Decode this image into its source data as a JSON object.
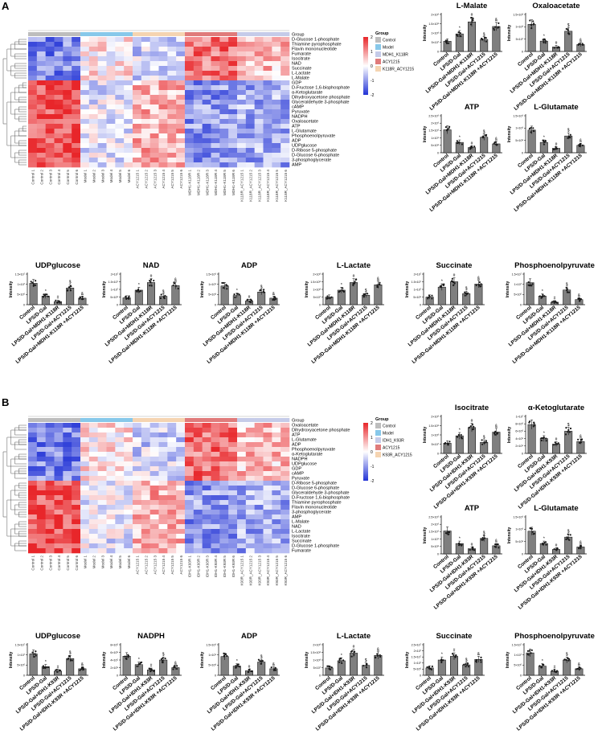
{
  "panels": {
    "A": {
      "label": "A",
      "heatmap": {
        "rows": [
          "D-Glucose 1-phosphate",
          "Thiamine pyrophosphate",
          "Flavin mononucleotide",
          "Fumarate",
          "Isocitrate",
          "NAD",
          "Succinate",
          "L-Lactate",
          "L-Malate",
          "GDP",
          "D-Fructose 1,6-bisphosphate",
          "α-Ketoglutarate",
          "Dihydroxyacetone phosphate",
          "Glyceraldehyde 3-phosphate",
          "cAMP",
          "Pyruvate",
          "NADPH",
          "Oxaloacetate",
          "ATP",
          "L-Glutamate",
          "Phosphoenolpyruvate",
          "ADP",
          "UDPglucose",
          "D-Ribose 5-phosphate",
          "D-Glucose 6-phosphate",
          "3-phosphoglycerate",
          "AMP"
        ],
        "columns": [
          "Control 1",
          "Control 2",
          "Control 3",
          "Control 4",
          "Control 5",
          "Control 6",
          "Model 1",
          "Model 2",
          "Model 3",
          "Model 4",
          "Model 5",
          "Model 6",
          "ACY1215 1",
          "ACY1215 2",
          "ACY1215 3",
          "ACY1215 4",
          "ACY1215 5",
          "ACY1215 6",
          "MDH1-K118R 1",
          "MDH1-K118R 2",
          "MDH1-K118R 3",
          "MDH1-K118R 4",
          "MDH1-K118R 5",
          "MDH1-K118R 6",
          "K118R_ACY1215 1",
          "K118R_ACY1215 2",
          "K118R_ACY1215 3",
          "K118R_ACY1215 4",
          "K118R_ACY1215 5",
          "K118R_ACY1215 6"
        ],
        "group_counts": [
          6,
          6,
          6,
          6,
          6
        ],
        "group_colors": [
          "#bdbdbd",
          "#87c8ea",
          "#f5d4b1",
          "#e07b7b",
          "#c5cbe9"
        ],
        "top_rows": 9,
        "legend": {
          "title": "Group",
          "items": [
            {
              "label": "Control",
              "color": "#bdbdbd"
            },
            {
              "label": "Model",
              "color": "#87c8ea"
            },
            {
              "label": "MDH1_K118R",
              "color": "#c5cbe9"
            },
            {
              "label": "ACY1215",
              "color": "#e07b7b"
            },
            {
              "label": "K118R_ACY1215",
              "color": "#f5d4b1"
            }
          ]
        },
        "scale_ticks": [
          "2",
          "1",
          "0",
          "-1",
          "-2"
        ]
      },
      "charts": [
        {
          "title": "L-Malate",
          "ymax": 2.0,
          "ticks": [
            "0",
            "5×10⁷",
            "1×10⁸",
            "1.5×10⁸",
            "2×10⁸"
          ],
          "categories": [
            "Control",
            "LPS/D-Gal",
            "LPS/D-Gal+MDH1-K118R",
            "LPS/D-Gal+ACY1215",
            "LPS/D-Gal+MDH1-K118R +ACY1215"
          ],
          "values": [
            0.55,
            0.95,
            1.6,
            0.65,
            1.35
          ],
          "sig": [
            "",
            "*",
            "#",
            "$",
            "&"
          ]
        },
        {
          "title": "Oxaloacetate",
          "ymax": 1.5,
          "ticks": [
            "0",
            "5×10⁷",
            "1×10⁸",
            "1.5×10⁸"
          ],
          "categories": [
            "Control",
            "LPS/D-Gal",
            "LPS/D-Gal+MDH1-K118R",
            "LPS/D-Gal+ACY1215",
            "LPS/D-Gal+MDH1-K118R +ACY1215"
          ],
          "values": [
            1.1,
            0.42,
            0.18,
            0.82,
            0.28
          ],
          "sig": [
            "",
            "*",
            "#",
            "$",
            "&"
          ]
        },
        {
          "title": "ATP",
          "ymax": 2.5,
          "ticks": [
            "0",
            "5×10⁸",
            "1×10⁹",
            "1.5×10⁹",
            "2×10⁹",
            "2.5×10⁹"
          ],
          "categories": [
            "Control",
            "LPS/D-Gal",
            "LPS/D-Gal+MDH1-K118R",
            "LPS/D-Gal+ACY1215",
            "LPS/D-Gal+MDH1-K118R +ACY1215"
          ],
          "values": [
            1.55,
            0.7,
            0.35,
            1.05,
            0.6
          ],
          "sig": [
            "",
            "*",
            "#",
            "$",
            "&"
          ]
        },
        {
          "title": "L-Glutamate",
          "ymax": 1.5,
          "ticks": [
            "0",
            "5×10⁸",
            "1×10⁹",
            "1.5×10⁹"
          ],
          "categories": [
            "Control",
            "LPS/D-Gal",
            "LPS/D-Gal+MDH1-K118R",
            "LPS/D-Gal+ACY1215",
            "LPS/D-Gal+MDH1-K118R +ACY1215"
          ],
          "values": [
            0.92,
            0.42,
            0.18,
            0.68,
            0.3
          ],
          "sig": [
            "",
            "*",
            "#",
            "$",
            "&"
          ]
        },
        {
          "title": "UDPglucose",
          "ymax": 1.5,
          "ticks": [
            "0",
            "5×10⁶",
            "1×10⁷",
            "1.5×10⁷"
          ],
          "categories": [
            "Control",
            "LPS/D-Gal",
            "LPS/D-Gal+MDH1-K118R",
            "LPS/D-Gal+ACY1215",
            "LPS/D-Gal+MDH1-K118R +ACY1215"
          ],
          "values": [
            1.05,
            0.42,
            0.15,
            0.82,
            0.32
          ],
          "sig": [
            "",
            "*",
            "#",
            "$",
            "&"
          ]
        },
        {
          "title": "NAD",
          "ymax": 2.0,
          "ticks": [
            "0",
            "5×10⁶",
            "1×10⁷",
            "1.5×10⁷",
            "2×10⁷"
          ],
          "categories": [
            "Control",
            "LPS/D-Gal",
            "LPS/D-Gal+MDH1-K118R",
            "LPS/D-Gal+ACY1215",
            "LPS/D-Gal+MDH1-K118R +ACY1215"
          ],
          "values": [
            0.45,
            0.95,
            1.45,
            0.55,
            1.25
          ],
          "sig": [
            "",
            "*",
            "#",
            "$",
            "&"
          ]
        },
        {
          "title": "ADP",
          "ymax": 1.5,
          "ticks": [
            "0",
            "5×10⁸",
            "1×10⁹",
            "1.5×10⁹"
          ],
          "categories": [
            "Control",
            "LPS/D-Gal",
            "LPS/D-Gal+MDH1-K118R",
            "LPS/D-Gal+ACY1215",
            "LPS/D-Gal+MDH1-K118R +ACY1215"
          ],
          "values": [
            0.92,
            0.45,
            0.18,
            0.62,
            0.32
          ],
          "sig": [
            "",
            "*",
            "#",
            "$",
            "&"
          ]
        },
        {
          "title": "L-Lactate",
          "ymax": 2.0,
          "ticks": [
            "0",
            "5×10⁷",
            "1×10⁸",
            "1.5×10⁸",
            "2×10⁸"
          ],
          "categories": [
            "Control",
            "LPS/D-Gal",
            "LPS/D-Gal+MDH1-K118R",
            "LPS/D-Gal+ACY1215",
            "LPS/D-Gal+MDH1-K118R +ACY1215"
          ],
          "values": [
            0.5,
            0.95,
            1.45,
            0.62,
            1.3
          ],
          "sig": [
            "",
            "*",
            "#",
            "$",
            "&"
          ]
        },
        {
          "title": "Succinate",
          "ymax": 2.0,
          "ticks": [
            "0",
            "5×10⁶",
            "1×10⁷",
            "1.5×10⁷",
            "2×10⁷"
          ],
          "categories": [
            "Control",
            "LPS/D-Gal",
            "LPS/D-Gal+MDH1-K118R",
            "LPS/D-Gal+ACY1215",
            "LPS/D-Gal+MDH1-K118R +ACY1215"
          ],
          "values": [
            0.5,
            1.15,
            1.5,
            0.72,
            1.35
          ],
          "sig": [
            "",
            "*",
            "#",
            "$",
            "&"
          ]
        },
        {
          "title": "Phosphoenolpyruvate",
          "ymax": 1.5,
          "ticks": [
            "0",
            "5×10⁶",
            "1×10⁷",
            "1.5×10⁷"
          ],
          "categories": [
            "Control",
            "LPS/D-Gal",
            "LPS/D-Gal+MDH1-K118R",
            "LPS/D-Gal+ACY1215",
            "LPS/D-Gal+MDH1-K118R +ACY1215"
          ],
          "values": [
            1.08,
            0.42,
            0.12,
            0.72,
            0.25
          ],
          "sig": [
            "",
            "*",
            "#",
            "$",
            "&"
          ]
        }
      ]
    },
    "B": {
      "label": "B",
      "heatmap": {
        "rows": [
          "Oxaloacetate",
          "Dihydroxyacetone phosphate",
          "ATP",
          "L-Glutamate",
          "ADP",
          "Phosphoenolpyruvate",
          "α-Ketoglutarate",
          "NADPH",
          "UDPglucose",
          "GDP",
          "cAMP",
          "Pyruvate",
          "D-Ribose 5-phosphate",
          "D-Glucose 6-phosphate",
          "Glyceraldehyde 3-phosphate",
          "D-Fructose 1,6-bisphosphate",
          "Thiamine pyrophosphate",
          "Flavin mononucleotide",
          "3-phosphoglycerate",
          "AMP",
          "L-Malate",
          "NAD",
          "L-Lactate",
          "Isocitrate",
          "Succinate",
          "D-Glucose 1-phosphate",
          "Fumarate"
        ],
        "columns": [
          "Control 1",
          "Control 2",
          "Control 3",
          "Control 4",
          "Control 5",
          "Control 6",
          "Model 1",
          "Model 2",
          "Model 3",
          "Model 4",
          "Model 5",
          "Model 6",
          "ACY1215 1",
          "ACY1215 2",
          "ACY1215 3",
          "ACY1215 4",
          "ACY1215 5",
          "ACY1215 6",
          "IDH1-K93R 1",
          "IDH1-K93R 2",
          "IDH1-K93R 3",
          "IDH1-K93R 4",
          "IDH1-K93R 5",
          "IDH1-K93R 6",
          "K93R_ACY1215 1",
          "K93R_ACY1215 2",
          "K93R_ACY1215 3",
          "K93R_ACY1215 4",
          "K93R_ACY1215 5",
          "K93R_ACY1215 6"
        ],
        "group_counts": [
          6,
          6,
          6,
          6,
          6
        ],
        "group_colors": [
          "#bdbdbd",
          "#87c8ea",
          "#f5d4b1",
          "#e07b7b",
          "#c5cbe9"
        ],
        "top_rows": 12,
        "legend": {
          "title": "Group",
          "items": [
            {
              "label": "Control",
              "color": "#bdbdbd"
            },
            {
              "label": "Model",
              "color": "#87c8ea"
            },
            {
              "label": "IDH1_K93R",
              "color": "#c5cbe9"
            },
            {
              "label": "ACY1215",
              "color": "#e07b7b"
            },
            {
              "label": "K93R_ACY1215",
              "color": "#f5d4b1"
            }
          ]
        },
        "scale_ticks": [
          "2",
          "1",
          "0",
          "-1",
          "-2"
        ]
      },
      "charts": [
        {
          "title": "Isocitrate",
          "ymax": 2.0,
          "ticks": [
            "0",
            "5×10⁷",
            "1×10⁸",
            "1.5×10⁸",
            "2×10⁸"
          ],
          "categories": [
            "Control",
            "LPS/D-Gal",
            "LPS/D-Gal+IDH1-K93R",
            "LPS/D-Gal+ACY1215",
            "LPS/D-Gal+IDH1-K93R +ACY1215"
          ],
          "values": [
            0.55,
            0.95,
            1.4,
            0.6,
            1.15
          ],
          "sig": [
            "",
            "*",
            "#",
            "$",
            "&"
          ]
        },
        {
          "title": "α-Ketoglutarate",
          "ymax": 1.0,
          "ticks": [
            "0",
            "2×10⁶",
            "4×10⁶",
            "6×10⁶",
            "8×10⁶",
            "1×10⁷"
          ],
          "categories": [
            "Control",
            "LPS/D-Gal",
            "LPS/D-Gal+IDH1-K93R",
            "LPS/D-Gal+ACY1215",
            "LPS/D-Gal+IDH1-K93R +ACY1215"
          ],
          "values": [
            0.78,
            0.4,
            0.25,
            0.6,
            0.32
          ],
          "sig": [
            "",
            "*",
            "#",
            "$",
            "&"
          ]
        },
        {
          "title": "ATP",
          "ymax": 2.5,
          "ticks": [
            "0",
            "5×10⁸",
            "1×10⁹",
            "1.5×10⁹",
            "2×10⁹",
            "2.5×10⁹"
          ],
          "categories": [
            "Control",
            "LPS/D-Gal",
            "LPS/D-Gal+IDH1-K93R",
            "LPS/D-Gal+ACY1215",
            "LPS/D-Gal+IDH1-K93R +ACY1215"
          ],
          "values": [
            1.55,
            0.7,
            0.35,
            1.05,
            0.55
          ],
          "sig": [
            "",
            "*",
            "#",
            "$",
            "&"
          ]
        },
        {
          "title": "L-Glutamate",
          "ymax": 1.5,
          "ticks": [
            "0",
            "5×10⁸",
            "1×10⁹",
            "1.5×10⁹"
          ],
          "categories": [
            "Control",
            "LPS/D-Gal",
            "LPS/D-Gal+IDH1-K93R",
            "LPS/D-Gal+ACY1215",
            "LPS/D-Gal+IDH1-K93R +ACY1215"
          ],
          "values": [
            0.92,
            0.42,
            0.18,
            0.68,
            0.28
          ],
          "sig": [
            "",
            "*",
            "#",
            "$",
            "&"
          ]
        },
        {
          "title": "UDPglucose",
          "ymax": 1.5,
          "ticks": [
            "0",
            "5×10⁶",
            "1×10⁷",
            "1.5×10⁷"
          ],
          "categories": [
            "Control",
            "LPS/D-Gal",
            "LPS/D-Gal+IDH1-K93R",
            "LPS/D-Gal+ACY1215",
            "LPS/D-Gal+IDH1-K93R +ACY1215"
          ],
          "values": [
            1.05,
            0.42,
            0.2,
            0.82,
            0.32
          ],
          "sig": [
            "",
            "*",
            "#",
            "$",
            "&"
          ]
        },
        {
          "title": "NADPH",
          "ymax": 8.0,
          "ticks": [
            "0",
            "2×10⁵",
            "4×10⁵",
            "6×10⁵",
            "8×10⁵"
          ],
          "categories": [
            "Control",
            "LPS/D-Gal",
            "LPS/D-Gal+IDH1-K93R",
            "LPS/D-Gal+ACY1215",
            "LPS/D-Gal+IDH1-K93R +ACY1215"
          ],
          "values": [
            5.0,
            2.8,
            1.4,
            4.0,
            2.0
          ],
          "sig": [
            "",
            "*",
            "#",
            "$",
            "&"
          ]
        },
        {
          "title": "ADP",
          "ymax": 1.5,
          "ticks": [
            "0",
            "5×10⁸",
            "1×10⁹",
            "1.5×10⁹"
          ],
          "categories": [
            "Control",
            "LPS/D-Gal",
            "LPS/D-Gal+IDH1-K93R",
            "LPS/D-Gal+ACY1215",
            "LPS/D-Gal+IDH1-K93R +ACY1215"
          ],
          "values": [
            0.92,
            0.45,
            0.22,
            0.65,
            0.32
          ],
          "sig": [
            "",
            "*",
            "#",
            "$",
            "&"
          ]
        },
        {
          "title": "L-Lactate",
          "ymax": 2.0,
          "ticks": [
            "0",
            "5×10⁷",
            "1×10⁸",
            "1.5×10⁸",
            "2×10⁸"
          ],
          "categories": [
            "Control",
            "LPS/D-Gal",
            "LPS/D-Gal+IDH1-K93R",
            "LPS/D-Gal+ACY1215",
            "LPS/D-Gal+IDH1-K93R +ACY1215"
          ],
          "values": [
            0.48,
            0.95,
            1.45,
            0.65,
            1.3
          ],
          "sig": [
            "",
            "*",
            "#",
            "$",
            "&"
          ]
        },
        {
          "title": "Succinate",
          "ymax": 2.5,
          "ticks": [
            "0",
            "5×10⁶",
            "1×10⁷",
            "1.5×10⁷",
            "2×10⁷",
            "2.5×10⁷"
          ],
          "categories": [
            "Control",
            "LPS/D-Gal",
            "LPS/D-Gal+IDH1-K93R",
            "LPS/D-Gal+ACY1215",
            "LPS/D-Gal+IDH1-K93R +ACY1215"
          ],
          "values": [
            0.6,
            1.25,
            1.55,
            0.85,
            1.3
          ],
          "sig": [
            "",
            "*",
            "#",
            "$",
            "&"
          ]
        },
        {
          "title": "Phosphoenolpyruvate",
          "ymax": 1.5,
          "ticks": [
            "0",
            "5×10⁶",
            "1×10⁷",
            "1.5×10⁷"
          ],
          "categories": [
            "Control",
            "LPS/D-Gal",
            "LPS/D-Gal+IDH1-K93R",
            "LPS/D-Gal+ACY1215",
            "LPS/D-Gal+IDH1-K93R +ACY1215"
          ],
          "values": [
            1.1,
            0.45,
            0.2,
            0.75,
            0.32
          ],
          "sig": [
            "",
            "*",
            "#",
            "$",
            "&"
          ]
        }
      ]
    }
  },
  "y_axis_label": "Intensity",
  "colors": {
    "bar": "#7f7f7f",
    "heat_high": "#e8262a",
    "heat_mid": "#ffffff",
    "heat_low": "#2233d6"
  }
}
